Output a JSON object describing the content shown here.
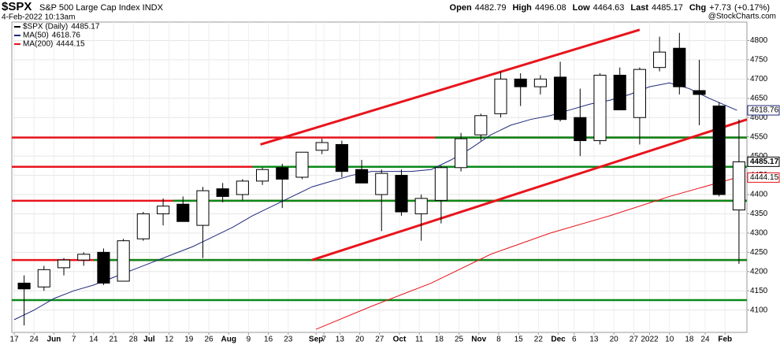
{
  "chart_data": {
    "type": "candlestick",
    "title": "$SPX",
    "subtitle": "S&P 500 Large Cap Index INDX",
    "date": "4-Feb-2022 10:13am",
    "source": "@StockCharts.com",
    "quote": [
      {
        "name": "Open",
        "value": 4482.79
      },
      {
        "name": "High",
        "value": 4496.08
      },
      {
        "name": "Low",
        "value": 4464.63
      },
      {
        "name": "Last",
        "value": 4485.17
      },
      {
        "name": "Chg",
        "value": {
          "value": 7.73,
          "label": "+7.73"
        },
        "pct": {
          "value": 0.17,
          "label": "(+0.17%)"
        }
      }
    ],
    "ylim": [
      4042,
      4848
    ],
    "yticks": [
      4100,
      4150,
      4200,
      4250,
      4300,
      4350,
      4400,
      4450,
      4500,
      4550,
      4600,
      4650,
      4700,
      4750,
      4800
    ],
    "xlim": [
      -0.6,
      184.5
    ],
    "xticks": [
      {
        "value": 0,
        "label": "17"
      },
      {
        "value": 5,
        "label": "24"
      },
      {
        "value": 10,
        "label": "Jun"
      },
      {
        "value": 15,
        "label": "7"
      },
      {
        "value": 20,
        "label": "14"
      },
      {
        "value": 25,
        "label": "21"
      },
      {
        "value": 30,
        "label": "28"
      },
      {
        "value": 34,
        "label": "Jul"
      },
      {
        "value": 39,
        "label": "12"
      },
      {
        "value": 44,
        "label": "19"
      },
      {
        "value": 49,
        "label": "26"
      },
      {
        "value": 54,
        "label": "Aug"
      },
      {
        "value": 59,
        "label": "9"
      },
      {
        "value": 64,
        "label": "16"
      },
      {
        "value": 69,
        "label": "23"
      },
      {
        "value": 76,
        "label": "Sep"
      },
      {
        "value": 78,
        "label": "7"
      },
      {
        "value": 82,
        "label": "13"
      },
      {
        "value": 87,
        "label": "20"
      },
      {
        "value": 92,
        "label": "27"
      },
      {
        "value": 97,
        "label": "Oct"
      },
      {
        "value": 102,
        "label": "11"
      },
      {
        "value": 107,
        "label": "18"
      },
      {
        "value": 112,
        "label": "25"
      },
      {
        "value": 117,
        "label": "Nov"
      },
      {
        "value": 122,
        "label": "8"
      },
      {
        "value": 127,
        "label": "15"
      },
      {
        "value": 132,
        "label": "22"
      },
      {
        "value": 137,
        "label": "Dec"
      },
      {
        "value": 141,
        "label": "6"
      },
      {
        "value": 146,
        "label": "13"
      },
      {
        "value": 151,
        "label": "20"
      },
      {
        "value": 156,
        "label": "27"
      },
      {
        "value": 160,
        "label": "2022"
      },
      {
        "value": 165,
        "label": "10"
      },
      {
        "value": 170,
        "label": "18"
      },
      {
        "value": 174,
        "label": "24"
      },
      {
        "value": 179,
        "label": "Feb"
      }
    ],
    "price": {
      "name": "$SPX (Daily)",
      "last": 4485.17,
      "color": "#000000",
      "x": [
        0,
        5,
        10,
        15,
        20,
        25,
        30,
        35,
        40,
        45,
        50,
        55,
        60,
        65,
        70,
        75,
        80,
        85,
        90,
        95,
        100,
        105,
        110,
        115,
        120,
        125,
        130,
        135,
        140,
        145,
        150,
        155,
        160,
        165,
        170,
        175,
        180
      ],
      "open": [
        4170,
        4160,
        4210,
        4230,
        4250,
        4175,
        4285,
        4350,
        4375,
        4320,
        4415,
        4400,
        4435,
        4470,
        4445,
        4515,
        4530,
        4465,
        4400,
        4450,
        4350,
        4385,
        4470,
        4555,
        4610,
        4700,
        4680,
        4705,
        4600,
        4540,
        4710,
        4600,
        4730,
        4780,
        4670,
        4630,
        4360
      ],
      "high": [
        4190,
        4215,
        4235,
        4250,
        4260,
        4285,
        4355,
        4390,
        4395,
        4420,
        4430,
        4440,
        4470,
        4480,
        4510,
        4545,
        4540,
        4490,
        4465,
        4465,
        4400,
        4475,
        4560,
        4610,
        4720,
        4715,
        4710,
        4745,
        4675,
        4715,
        4730,
        4730,
        4810,
        4820,
        4750,
        4640,
        4595
      ],
      "low": [
        4060,
        4150,
        4190,
        4215,
        4165,
        4175,
        4280,
        4320,
        4330,
        4235,
        4380,
        4385,
        4425,
        4365,
        4440,
        4505,
        4445,
        4430,
        4305,
        4345,
        4280,
        4325,
        4460,
        4540,
        4600,
        4630,
        4660,
        4590,
        4500,
        4530,
        4620,
        4530,
        4720,
        4660,
        4580,
        4395,
        4220
      ],
      "close": [
        4155,
        4205,
        4230,
        4245,
        4170,
        4280,
        4350,
        4370,
        4330,
        4410,
        4395,
        4435,
        4465,
        4440,
        4510,
        4535,
        4460,
        4430,
        4455,
        4355,
        4390,
        4470,
        4545,
        4605,
        4700,
        4680,
        4700,
        4595,
        4540,
        4710,
        4620,
        4725,
        4770,
        4680,
        4660,
        4400,
        4485
      ]
    },
    "overlays": [
      {
        "name": "MA(50)",
        "last": 4618.76,
        "color": "#1f2a7a",
        "x": [
          0,
          5,
          10,
          15,
          20,
          25,
          30,
          35,
          40,
          45,
          50,
          55,
          60,
          65,
          70,
          75,
          80,
          85,
          90,
          95,
          100,
          105,
          110,
          115,
          120,
          125,
          130,
          135,
          140,
          145,
          150,
          155,
          160,
          165,
          170,
          175,
          182
        ],
        "values": [
          4075,
          4100,
          4130,
          4150,
          4165,
          4185,
          4205,
          4225,
          4245,
          4265,
          4290,
          4315,
          4345,
          4370,
          4395,
          4420,
          4435,
          4450,
          4460,
          4460,
          4460,
          4465,
          4490,
          4520,
          4555,
          4580,
          4595,
          4605,
          4620,
          4635,
          4645,
          4660,
          4680,
          4690,
          4675,
          4650,
          4618.76
        ]
      },
      {
        "name": "MA(200)",
        "last": 4444.15,
        "color": "#e8141c",
        "x": [
          76,
          90,
          105,
          120,
          135,
          150,
          165,
          182
        ],
        "values": [
          4050,
          4110,
          4170,
          4245,
          4300,
          4345,
          4395,
          4444.15
        ]
      }
    ],
    "hlines": [
      {
        "y": 4548,
        "color": "#e8141c",
        "x": [
          -0.6,
          184.5
        ]
      },
      {
        "y": 4472,
        "color": "#e8141c",
        "x": [
          -0.6,
          184.5
        ]
      },
      {
        "y": 4384,
        "color": "#e8141c",
        "x": [
          -0.6,
          184.5
        ]
      },
      {
        "y": 4230,
        "color": "#e8141c",
        "x": [
          -0.6,
          184.5
        ]
      },
      {
        "y": 4548,
        "color": "#0a8a1a",
        "x": [
          106,
          184.5
        ]
      },
      {
        "y": 4472,
        "color": "#0a8a1a",
        "x": [
          60,
          184.5
        ]
      },
      {
        "y": 4384,
        "color": "#0a8a1a",
        "x": [
          40,
          184.5
        ]
      },
      {
        "y": 4230,
        "color": "#0a8a1a",
        "x": [
          20,
          184.5
        ]
      },
      {
        "y": 4126,
        "color": "#0a8a1a",
        "x": [
          -0.6,
          184.5
        ]
      }
    ],
    "trendlines": [
      {
        "x": [
          62,
          157.5
        ],
        "y": [
          4530,
          4828
        ],
        "color": "#e8141c"
      },
      {
        "x": [
          75,
          184.5
        ],
        "y": [
          4230,
          4595
        ],
        "color": "#e8141c"
      }
    ]
  }
}
